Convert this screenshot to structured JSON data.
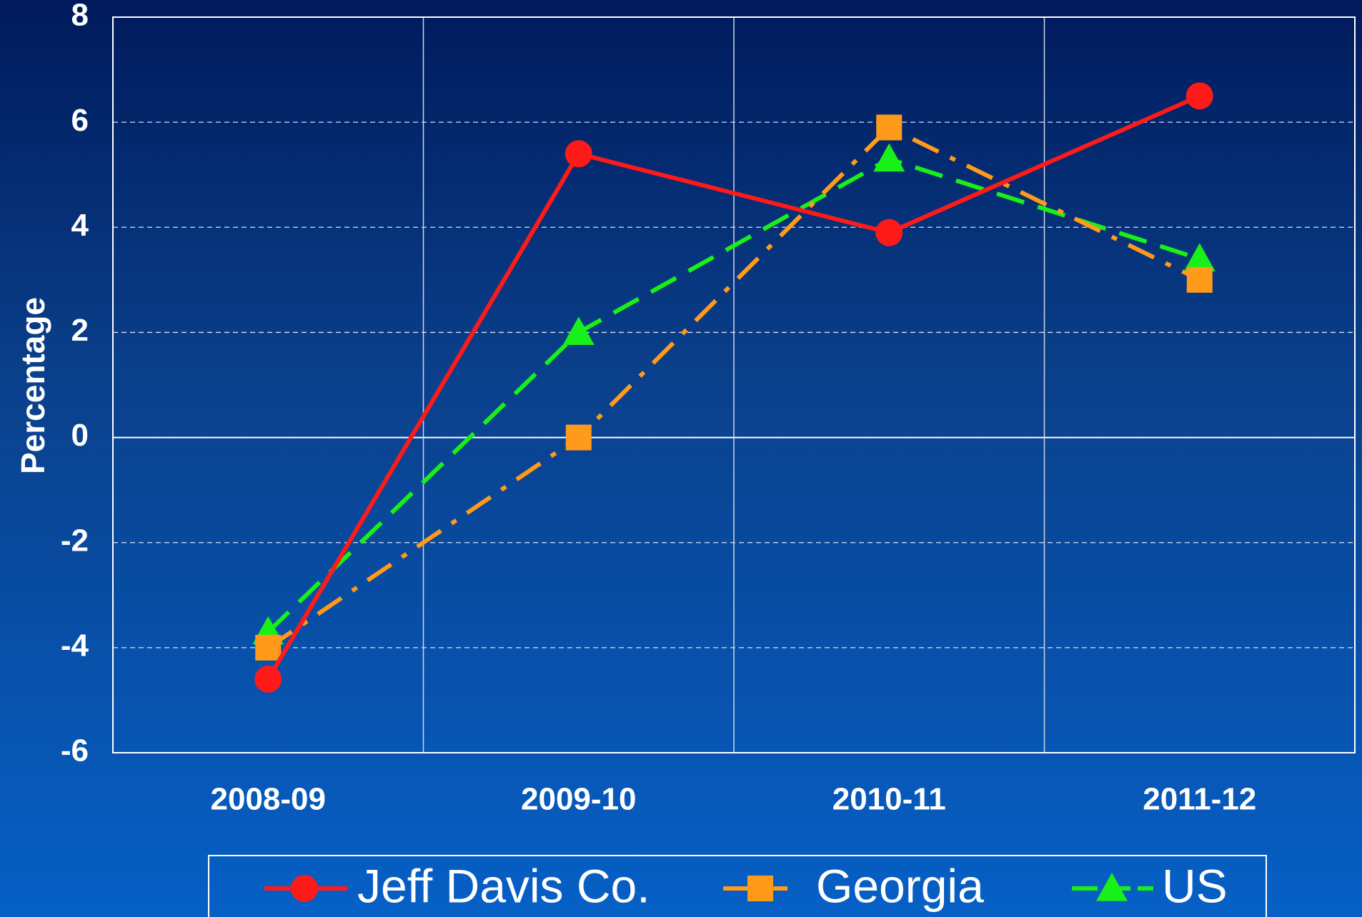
{
  "chart_data": {
    "type": "line",
    "categories": [
      "2008-09",
      "2009-10",
      "2010-11",
      "2011-12"
    ],
    "ylabel": "Percentage",
    "ylim": [
      -6,
      8
    ],
    "yticks": [
      -6,
      -4,
      -2,
      0,
      2,
      4,
      6,
      8
    ],
    "ytick_labels": [
      "-6",
      "-4",
      "-2",
      "0",
      "2",
      "4",
      "6",
      "8"
    ],
    "grid": true,
    "legend_position": "bottom",
    "series": [
      {
        "name": "Jeff Davis Co.",
        "values": [
          -4.6,
          5.4,
          3.9,
          6.5
        ],
        "color": "#ff1a1a",
        "marker": "circle",
        "dash": "solid"
      },
      {
        "name": "Georgia",
        "values": [
          -4.0,
          0.0,
          5.9,
          3.0
        ],
        "color": "#ff9a1a",
        "marker": "square",
        "dash": "dashdot"
      },
      {
        "name": "US",
        "values": [
          -3.7,
          2.0,
          5.3,
          3.4
        ],
        "color": "#19f019",
        "marker": "triangle",
        "dash": "dashed"
      }
    ]
  }
}
